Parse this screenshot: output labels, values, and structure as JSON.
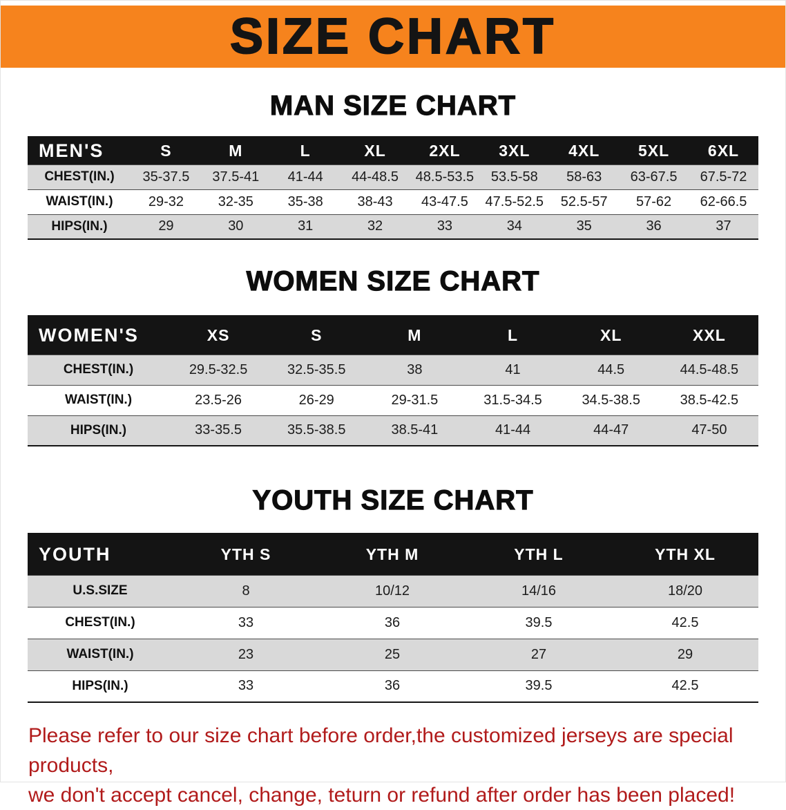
{
  "banner": {
    "title": "SIZE CHART",
    "bg_color": "#f6831d"
  },
  "sections": [
    {
      "heading": "MAN SIZE CHART",
      "table": {
        "header_label": "MEN'S",
        "columns": [
          "S",
          "M",
          "L",
          "XL",
          "2XL",
          "3XL",
          "4XL",
          "5XL",
          "6XL"
        ],
        "rows": [
          {
            "label": "CHEST(IN.)",
            "values": [
              "35-37.5",
              "37.5-41",
              "41-44",
              "44-48.5",
              "48.5-53.5",
              "53.5-58",
              "58-63",
              "63-67.5",
              "67.5-72"
            ]
          },
          {
            "label": "WAIST(IN.)",
            "values": [
              "29-32",
              "32-35",
              "35-38",
              "38-43",
              "43-47.5",
              "47.5-52.5",
              "52.5-57",
              "57-62",
              "62-66.5"
            ]
          },
          {
            "label": "HIPS(IN.)",
            "values": [
              "29",
              "30",
              "31",
              "32",
              "33",
              "34",
              "35",
              "36",
              "37"
            ]
          }
        ]
      }
    },
    {
      "heading": "WOMEN SIZE CHART",
      "table": {
        "header_label": "WOMEN'S",
        "columns": [
          "XS",
          "S",
          "M",
          "L",
          "XL",
          "XXL"
        ],
        "rows": [
          {
            "label": "CHEST(IN.)",
            "values": [
              "29.5-32.5",
              "32.5-35.5",
              "38",
              "41",
              "44.5",
              "44.5-48.5"
            ]
          },
          {
            "label": "WAIST(IN.)",
            "values": [
              "23.5-26",
              "26-29",
              "29-31.5",
              "31.5-34.5",
              "34.5-38.5",
              "38.5-42.5"
            ]
          },
          {
            "label": "HIPS(IN.)",
            "values": [
              "33-35.5",
              "35.5-38.5",
              "38.5-41",
              "41-44",
              "44-47",
              "47-50"
            ]
          }
        ]
      }
    },
    {
      "heading": "YOUTH SIZE CHART",
      "table": {
        "header_label": "YOUTH",
        "columns": [
          "YTH S",
          "YTH M",
          "YTH L",
          "YTH XL"
        ],
        "rows": [
          {
            "label": "U.S.SIZE",
            "values": [
              "8",
              "10/12",
              "14/16",
              "18/20"
            ]
          },
          {
            "label": "CHEST(IN.)",
            "values": [
              "33",
              "36",
              "39.5",
              "42.5"
            ]
          },
          {
            "label": "WAIST(IN.)",
            "values": [
              "23",
              "25",
              "27",
              "29"
            ]
          },
          {
            "label": "HIPS(IN.)",
            "values": [
              "33",
              "36",
              "39.5",
              "42.5"
            ]
          }
        ]
      }
    }
  ],
  "footer": {
    "line1": "Please refer to our size chart before order,the customized jerseys are special products,",
    "line2": "we don't accept cancel, change, teturn or refund after order has been placed!",
    "text_color": "#b11b1b"
  }
}
